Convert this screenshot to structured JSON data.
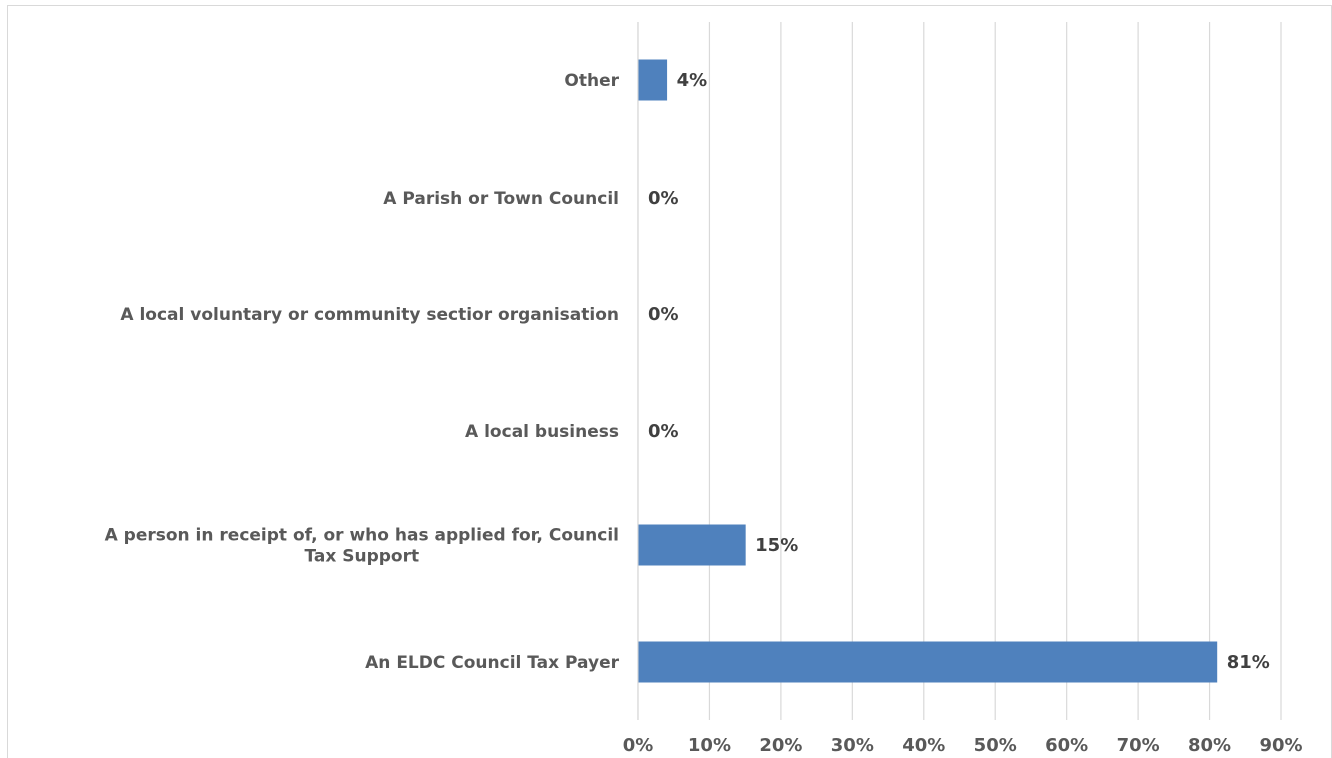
{
  "chart_data": {
    "type": "bar",
    "orientation": "horizontal",
    "categories": [
      "Other",
      "A Parish or Town Council",
      "A local voluntary or community sectior organisation",
      "A local business",
      "A person in receipt of, or who has applied for, Council Tax Support",
      "An ELDC Council Tax Payer"
    ],
    "category_lines": [
      [
        "Other"
      ],
      [
        "A Parish or Town Council"
      ],
      [
        "A local voluntary or community sectior organisation"
      ],
      [
        "A local business"
      ],
      [
        "A person in receipt of, or who has applied for, Council",
        "Tax Support"
      ],
      [
        "An ELDC Council Tax Payer"
      ]
    ],
    "values": [
      4,
      0,
      0,
      0,
      15,
      81
    ],
    "value_labels": [
      "4%",
      "0%",
      "0%",
      "0%",
      "15%",
      "81%"
    ],
    "xlim": [
      0,
      90
    ],
    "x_ticks": [
      0,
      10,
      20,
      30,
      40,
      50,
      60,
      70,
      80,
      90
    ],
    "x_tick_labels": [
      "0%",
      "10%",
      "20%",
      "30%",
      "40%",
      "50%",
      "60%",
      "70%",
      "80%",
      "90%"
    ],
    "title": "",
    "xlabel": "",
    "ylabel": "",
    "grid": true,
    "legend": "none",
    "bar_color": "#4f81bd",
    "grid_color": "#d9d9d9"
  }
}
